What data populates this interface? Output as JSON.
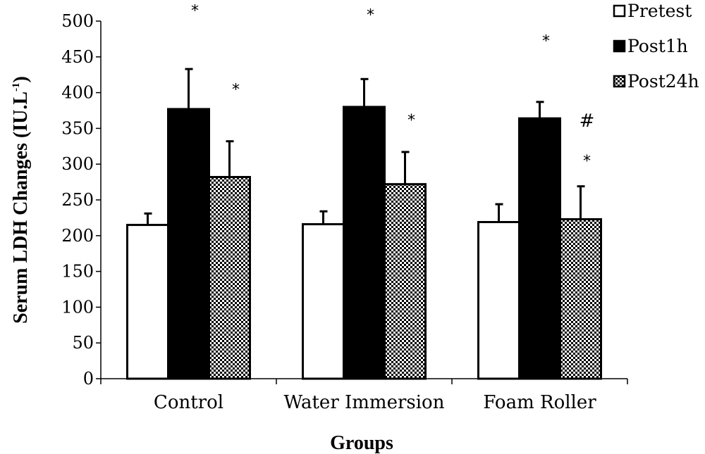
{
  "chart_data": {
    "type": "bar",
    "xlabel": "Groups",
    "ylabel": "Serum LDH Changes (IU.L",
    "ylabel_superscript": "-1",
    "ylabel_close": ")",
    "ylim": [
      0,
      500
    ],
    "yticks": [
      0,
      50,
      100,
      150,
      200,
      250,
      300,
      350,
      400,
      450,
      500
    ],
    "categories": [
      "Control",
      "Water Immersion",
      "Foam Roller"
    ],
    "series": [
      {
        "name": "Pretest",
        "fill": "white",
        "values": [
          215,
          216,
          219
        ],
        "errors": [
          16,
          18,
          25
        ]
      },
      {
        "name": "Post1h",
        "fill": "black",
        "values": [
          377,
          380,
          364
        ],
        "errors": [
          56,
          39,
          23
        ]
      },
      {
        "name": "Post24h",
        "fill": "checker",
        "values": [
          282,
          272,
          223
        ],
        "errors": [
          50,
          45,
          46
        ]
      }
    ],
    "annotations": [
      {
        "category": 0,
        "series": 1,
        "text": "*",
        "y": 523
      },
      {
        "category": 0,
        "series": 2,
        "text": "*",
        "y": 413
      },
      {
        "category": 1,
        "series": 1,
        "text": "*",
        "y": 517
      },
      {
        "category": 1,
        "series": 2,
        "text": "*",
        "y": 370
      },
      {
        "category": 2,
        "series": 1,
        "text": "*",
        "y": 481
      },
      {
        "category": 2,
        "series": 2,
        "text": "#",
        "y": 362
      },
      {
        "category": 2,
        "series": 2,
        "text": "*",
        "y": 313
      }
    ],
    "legend_position": "top-right",
    "grid": false
  }
}
